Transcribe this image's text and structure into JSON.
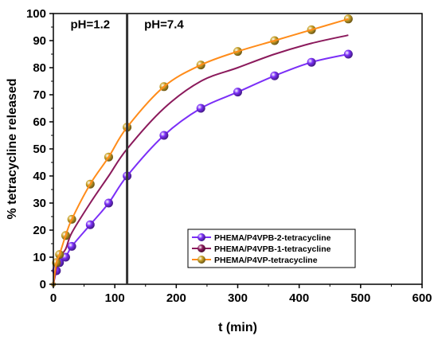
{
  "chart_data": {
    "type": "line",
    "xlabel": "t (min)",
    "ylabel": "% tetracycline released",
    "xlim": [
      0,
      600
    ],
    "ylim": [
      0,
      100
    ],
    "xticks": [
      "0",
      "100",
      "200",
      "300",
      "400",
      "500",
      "600"
    ],
    "yticks": [
      "0",
      "10",
      "20",
      "30",
      "40",
      "50",
      "60",
      "70",
      "80",
      "90",
      "100"
    ],
    "grid": false,
    "legend_position": "bottom-right",
    "vline": {
      "x": 120,
      "color": "#333333"
    },
    "annotations": [
      {
        "text": "pH=1.2",
        "x": 60,
        "y": 96
      },
      {
        "text": "pH=7.4",
        "x": 180,
        "y": 96
      }
    ],
    "series": [
      {
        "name": "PHEMA/P4VPB-2-tetracycline",
        "color": "#7b2ff7",
        "points": [
          [
            0,
            0
          ],
          [
            5,
            5
          ],
          [
            10,
            8
          ],
          [
            20,
            10
          ],
          [
            30,
            14
          ],
          [
            60,
            22
          ],
          [
            90,
            30
          ],
          [
            120,
            40
          ],
          [
            180,
            55
          ],
          [
            240,
            65
          ],
          [
            300,
            71
          ],
          [
            360,
            77
          ],
          [
            420,
            82
          ],
          [
            480,
            85
          ]
        ]
      },
      {
        "name": "PHEMA/P4VPB-1-tetracycline",
        "color": "#8b1a5c",
        "points": [
          [
            0,
            0
          ],
          [
            5,
            6
          ],
          [
            10,
            10
          ],
          [
            20,
            13
          ],
          [
            30,
            19
          ],
          [
            60,
            30
          ],
          [
            90,
            40
          ],
          [
            120,
            50
          ],
          [
            180,
            65
          ],
          [
            240,
            75
          ],
          [
            300,
            80
          ],
          [
            360,
            85
          ],
          [
            420,
            89
          ],
          [
            480,
            92
          ]
        ]
      },
      {
        "name": "PHEMA/P4VP-tetracycline",
        "color": "#c9a227",
        "line_color": "#ff8c1a",
        "points": [
          [
            0,
            0
          ],
          [
            5,
            8
          ],
          [
            10,
            11
          ],
          [
            20,
            18
          ],
          [
            30,
            24
          ],
          [
            60,
            37
          ],
          [
            90,
            47
          ],
          [
            120,
            58
          ],
          [
            180,
            73
          ],
          [
            240,
            81
          ],
          [
            300,
            86
          ],
          [
            360,
            90
          ],
          [
            420,
            94
          ],
          [
            480,
            98
          ]
        ]
      }
    ]
  }
}
